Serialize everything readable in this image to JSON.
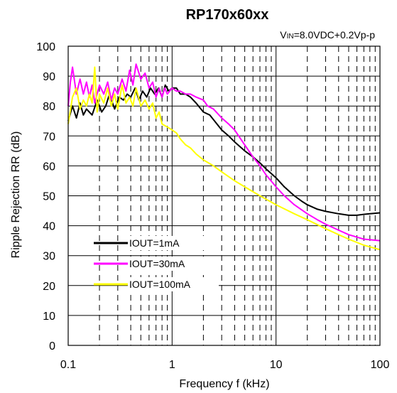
{
  "chart_data": {
    "type": "line",
    "title": "RP170x60xx",
    "subtitle": {
      "prefix": "V",
      "subscript": "IN",
      "suffix": "=8.0VDC+0.2Vp-p"
    },
    "xlabel": "Frequency f (kHz)",
    "ylabel": "Ripple Rejection RR (dB)",
    "x_scale": "log",
    "xlim": [
      0.1,
      100
    ],
    "ylim": [
      0,
      100
    ],
    "x_ticks": [
      {
        "value": 0.1,
        "label": "0.1"
      },
      {
        "value": 1,
        "label": "1"
      },
      {
        "value": 10,
        "label": "10"
      },
      {
        "value": 100,
        "label": "100"
      }
    ],
    "y_ticks": [
      {
        "value": 0,
        "label": "0"
      },
      {
        "value": 10,
        "label": "10"
      },
      {
        "value": 20,
        "label": "20"
      },
      {
        "value": 30,
        "label": "30"
      },
      {
        "value": 40,
        "label": "40"
      },
      {
        "value": 50,
        "label": "50"
      },
      {
        "value": 60,
        "label": "60"
      },
      {
        "value": 70,
        "label": "70"
      },
      {
        "value": 80,
        "label": "80"
      },
      {
        "value": 90,
        "label": "90"
      },
      {
        "value": 100,
        "label": "100"
      }
    ],
    "grid": true,
    "legend_position": "lower-left",
    "series": [
      {
        "name": "IOUT=1mA",
        "color": "#000000",
        "x": [
          0.1,
          0.11,
          0.12,
          0.13,
          0.14,
          0.15,
          0.17,
          0.19,
          0.21,
          0.23,
          0.25,
          0.28,
          0.31,
          0.34,
          0.37,
          0.4,
          0.44,
          0.48,
          0.52,
          0.57,
          0.62,
          0.68,
          0.74,
          0.8,
          0.86,
          0.93,
          1.0,
          1.1,
          1.2,
          1.35,
          1.5,
          1.7,
          2.0,
          2.3,
          2.7,
          3.0,
          3.5,
          4.0,
          5.0,
          6.0,
          7.0,
          8.0,
          10,
          12,
          15,
          18,
          20,
          25,
          30,
          40,
          50,
          60,
          70,
          80,
          100
        ],
        "y": [
          75,
          80,
          76,
          81,
          77,
          79,
          77,
          82,
          78,
          80,
          84,
          79,
          83,
          82,
          84,
          83,
          86,
          82,
          85,
          83,
          86,
          84,
          86,
          83,
          87,
          85,
          86,
          86,
          84,
          84,
          83,
          81,
          78,
          77,
          74,
          72,
          70,
          68,
          65,
          63,
          61,
          59,
          56,
          53,
          50,
          48,
          47,
          45.5,
          44.8,
          44,
          43.5,
          43.5,
          43.8,
          44,
          44.3
        ]
      },
      {
        "name": "IOUT=30mA",
        "color": "#ff00ff",
        "x": [
          0.1,
          0.105,
          0.11,
          0.12,
          0.13,
          0.14,
          0.15,
          0.16,
          0.17,
          0.18,
          0.2,
          0.22,
          0.24,
          0.26,
          0.28,
          0.3,
          0.33,
          0.36,
          0.39,
          0.42,
          0.45,
          0.5,
          0.55,
          0.6,
          0.65,
          0.7,
          0.75,
          0.8,
          0.85,
          0.9,
          1.0,
          1.1,
          1.2,
          1.35,
          1.5,
          1.7,
          2.0,
          2.2,
          2.5,
          3.0,
          3.5,
          4.0,
          5.0,
          6.0,
          7.0,
          8.0,
          10,
          12,
          15,
          20,
          25,
          30,
          40,
          50,
          70,
          100
        ],
        "y": [
          80,
          88,
          93,
          84,
          89,
          84,
          88,
          83,
          87,
          81,
          87,
          84,
          88,
          82,
          86,
          84,
          89,
          85,
          92,
          87,
          94,
          89,
          91,
          86,
          88,
          83,
          86,
          83,
          86,
          84,
          86,
          85,
          85,
          84,
          84,
          83,
          82,
          80,
          79,
          76,
          74,
          72,
          67,
          63,
          60,
          57,
          53,
          50,
          47,
          44,
          42,
          40.5,
          38.5,
          37,
          35.5,
          35
        ]
      },
      {
        "name": "IOUT=100mA",
        "color": "#ffff00",
        "x": [
          0.1,
          0.11,
          0.12,
          0.13,
          0.14,
          0.15,
          0.16,
          0.17,
          0.18,
          0.19,
          0.2,
          0.22,
          0.24,
          0.26,
          0.28,
          0.3,
          0.33,
          0.36,
          0.39,
          0.42,
          0.45,
          0.5,
          0.55,
          0.6,
          0.65,
          0.7,
          0.75,
          0.8,
          0.9,
          1.0,
          1.1,
          1.2,
          1.35,
          1.5,
          1.7,
          2.0,
          2.5,
          3.0,
          4.0,
          5.0,
          7.0,
          10,
          15,
          20,
          30,
          40,
          50,
          70,
          100
        ],
        "y": [
          74,
          83,
          86,
          79,
          82,
          80,
          84,
          81,
          93,
          78,
          84,
          81,
          86,
          80,
          84,
          79,
          87,
          81,
          83,
          80,
          86,
          80,
          82,
          79,
          81,
          76,
          78,
          74,
          73,
          72,
          71,
          69,
          67,
          66,
          64,
          62,
          60,
          58,
          55,
          53,
          50,
          47,
          44,
          42,
          39,
          37,
          35.5,
          33.5,
          32
        ]
      }
    ]
  }
}
